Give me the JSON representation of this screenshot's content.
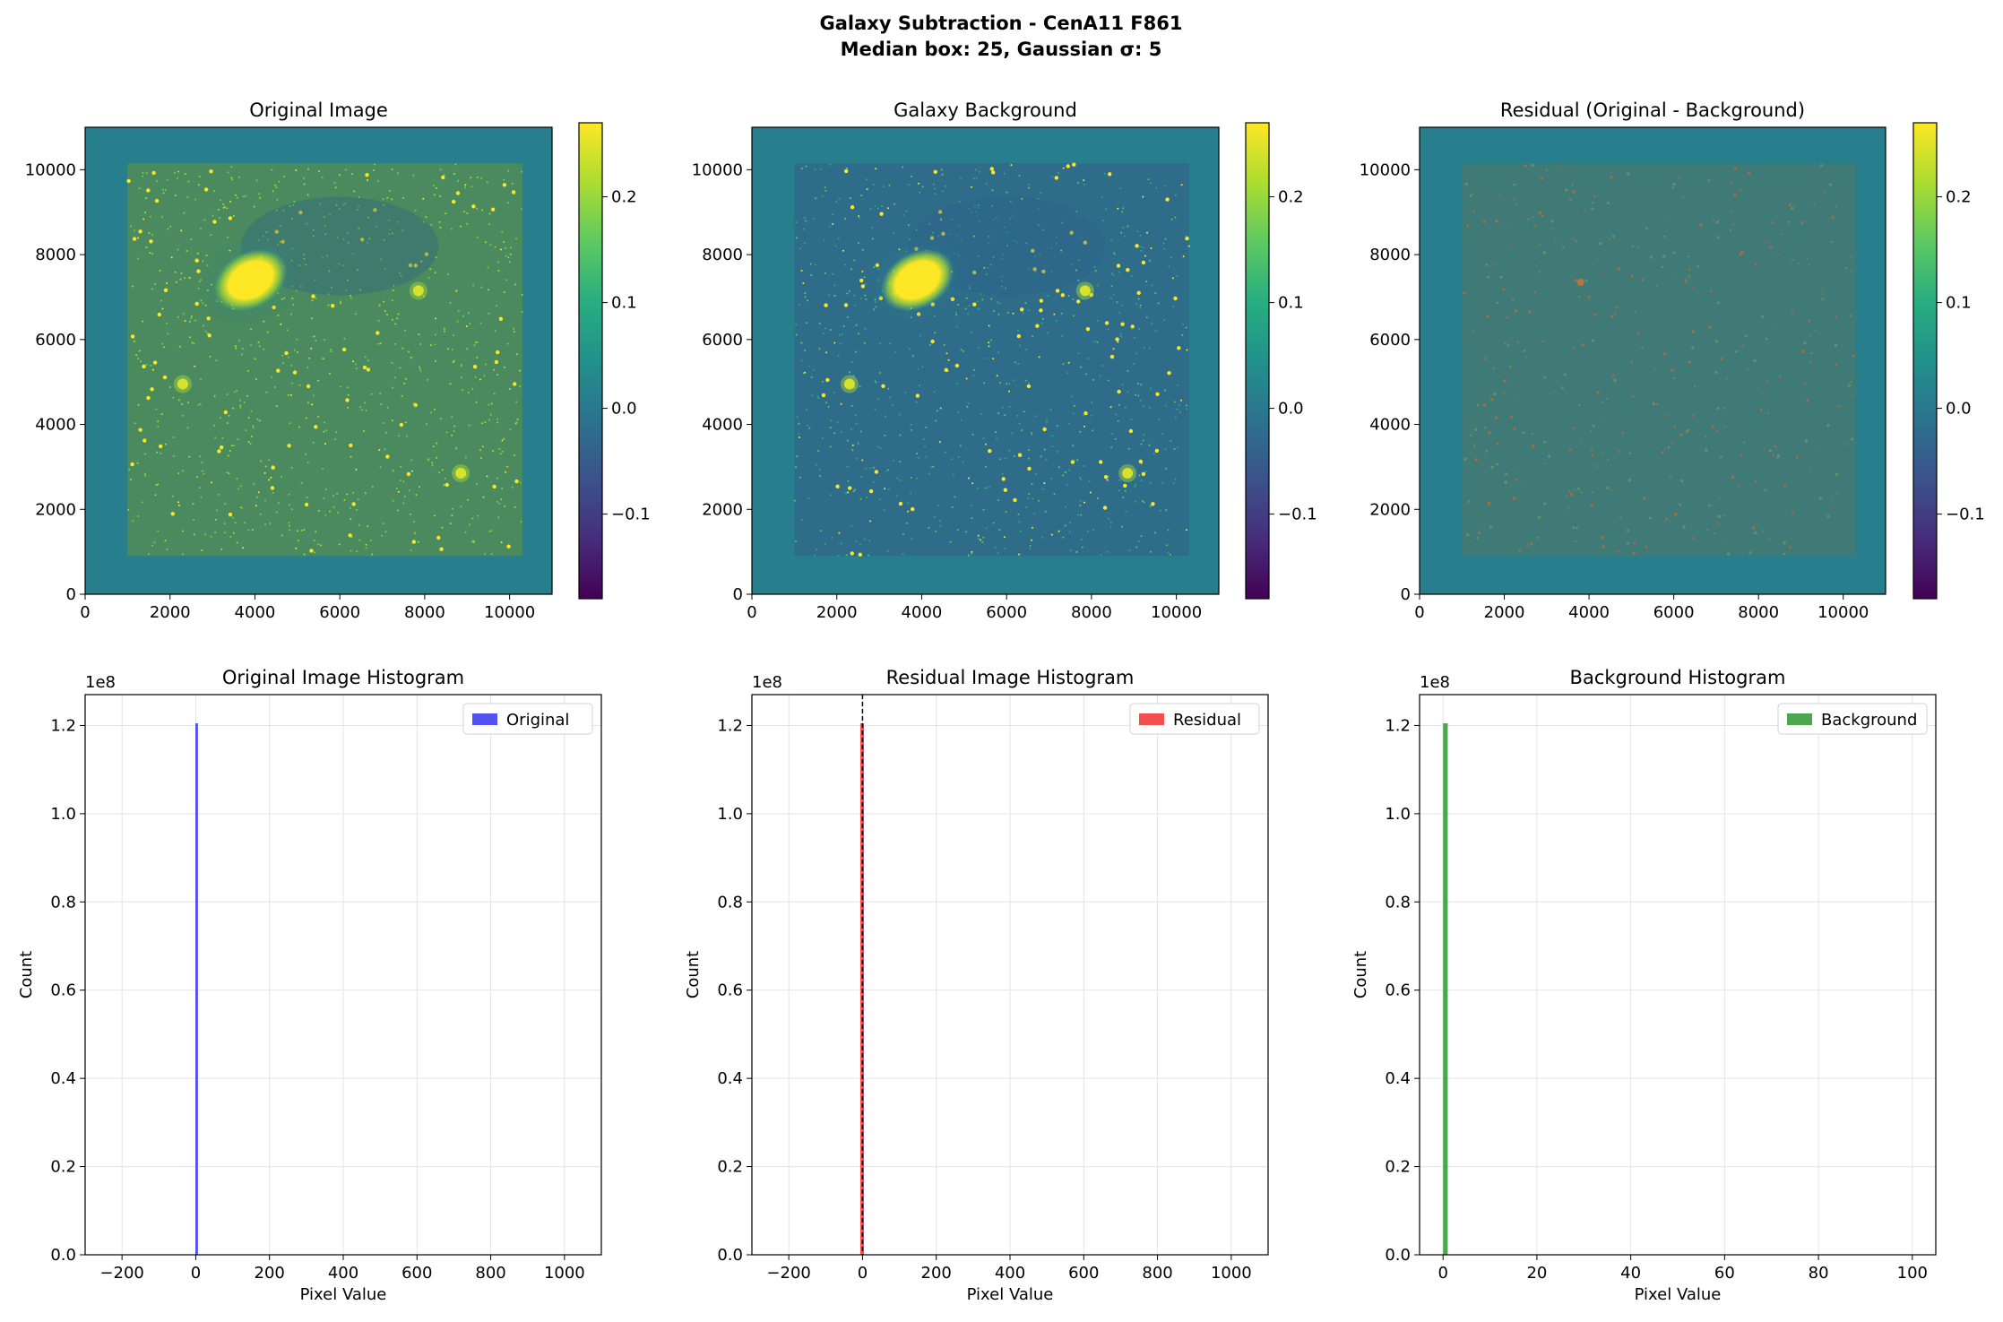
{
  "figure": {
    "title_line1": "Galaxy Subtraction - CenA11 F861",
    "title_line2": "Median box: 25, Gaussian σ: 5"
  },
  "colormap": "viridis",
  "chart_data": [
    {
      "type": "heatmap",
      "title": "Original Image",
      "xlim": [
        0,
        11000
      ],
      "ylim": [
        0,
        11000
      ],
      "xticks": [
        0,
        2000,
        4000,
        6000,
        8000,
        10000
      ],
      "yticks": [
        0,
        2000,
        4000,
        6000,
        8000,
        10000
      ],
      "data_region": [
        1000,
        10300,
        900,
        10150
      ],
      "colorbar": {
        "range": [
          -0.18,
          0.27
        ],
        "ticks": [
          -0.1,
          0.0,
          0.1,
          0.2
        ],
        "tick_labels": [
          "−0.1",
          "0.0",
          "0.1",
          "0.2"
        ]
      },
      "bright_sources": [
        {
          "x": 3900,
          "y": 7400,
          "rx": 800,
          "ry": 550,
          "rotation": -30
        },
        {
          "x": 8850,
          "y": 2850
        },
        {
          "x": 2300,
          "y": 4950
        },
        {
          "x": 7850,
          "y": 7150
        }
      ]
    },
    {
      "type": "heatmap",
      "title": "Galaxy Background",
      "xlim": [
        0,
        11000
      ],
      "ylim": [
        0,
        11000
      ],
      "xticks": [
        0,
        2000,
        4000,
        6000,
        8000,
        10000
      ],
      "yticks": [
        0,
        2000,
        4000,
        6000,
        8000,
        10000
      ],
      "data_region": [
        1000,
        10300,
        900,
        10150
      ],
      "colorbar": {
        "range": [
          -0.18,
          0.27
        ],
        "ticks": [
          -0.1,
          0.0,
          0.1,
          0.2
        ],
        "tick_labels": [
          "−0.1",
          "0.0",
          "0.1",
          "0.2"
        ]
      },
      "bright_sources": [
        {
          "x": 3900,
          "y": 7400,
          "rx": 800,
          "ry": 550,
          "rotation": -30
        },
        {
          "x": 8850,
          "y": 2850
        },
        {
          "x": 2300,
          "y": 4950
        },
        {
          "x": 7850,
          "y": 7150
        }
      ]
    },
    {
      "type": "heatmap",
      "title": "Residual (Original - Background)",
      "xlim": [
        0,
        11000
      ],
      "ylim": [
        0,
        11000
      ],
      "xticks": [
        0,
        2000,
        4000,
        6000,
        8000,
        10000
      ],
      "yticks": [
        0,
        2000,
        4000,
        6000,
        8000,
        10000
      ],
      "data_region": [
        1000,
        10300,
        900,
        10150
      ],
      "colorbar": {
        "range": [
          -0.18,
          0.27
        ],
        "ticks": [
          -0.1,
          0.0,
          0.1,
          0.2
        ],
        "tick_labels": [
          "−0.1",
          "0.0",
          "0.1",
          "0.2"
        ]
      },
      "bright_sources": [
        {
          "x": 3800,
          "y": 7350
        }
      ]
    },
    {
      "type": "bar",
      "title": "Original Image Histogram",
      "xlabel": "Pixel Value",
      "ylabel": "Count",
      "xlim": [
        -300,
        1100
      ],
      "ylim": [
        0,
        1.27
      ],
      "y_offset_label": "1e8",
      "xticks": [
        -200,
        0,
        200,
        400,
        600,
        800,
        1000
      ],
      "xtick_labels": [
        "−200",
        "0",
        "200",
        "400",
        "600",
        "800",
        "1000"
      ],
      "yticks": [
        0.0,
        0.2,
        0.4,
        0.6,
        0.8,
        1.0,
        1.2
      ],
      "ytick_labels": [
        "0.0",
        "0.2",
        "0.4",
        "0.6",
        "0.8",
        "1.0",
        "1.2"
      ],
      "bars": [
        {
          "x0": -1,
          "x1": 6,
          "count": 1.205
        }
      ],
      "series": [
        {
          "name": "Original",
          "color": "#5252f2"
        }
      ],
      "legend": "top-right",
      "grid": true
    },
    {
      "type": "bar",
      "title": "Residual Image Histogram",
      "xlabel": "Pixel Value",
      "ylabel": "Count",
      "xlim": [
        -300,
        1100
      ],
      "ylim": [
        0,
        1.27
      ],
      "y_offset_label": "1e8",
      "xticks": [
        -200,
        0,
        200,
        400,
        600,
        800,
        1000
      ],
      "xtick_labels": [
        "−200",
        "0",
        "200",
        "400",
        "600",
        "800",
        "1000"
      ],
      "yticks": [
        0.0,
        0.2,
        0.4,
        0.6,
        0.8,
        1.0,
        1.2
      ],
      "ytick_labels": [
        "0.0",
        "0.2",
        "0.4",
        "0.6",
        "0.8",
        "1.0",
        "1.2"
      ],
      "bars": [
        {
          "x0": -6,
          "x1": 4,
          "count": 1.205
        }
      ],
      "vline": 0,
      "series": [
        {
          "name": "Residual",
          "color": "#f24f4f"
        }
      ],
      "legend": "top-right",
      "grid": true
    },
    {
      "type": "bar",
      "title": "Background Histogram",
      "xlabel": "Pixel Value",
      "ylabel": "Count",
      "xlim": [
        -5,
        105
      ],
      "ylim": [
        0,
        1.27
      ],
      "y_offset_label": "1e8",
      "xticks": [
        0,
        20,
        40,
        60,
        80,
        100
      ],
      "xtick_labels": [
        "0",
        "20",
        "40",
        "60",
        "80",
        "100"
      ],
      "yticks": [
        0.0,
        0.2,
        0.4,
        0.6,
        0.8,
        1.0,
        1.2
      ],
      "ytick_labels": [
        "0.0",
        "0.2",
        "0.4",
        "0.6",
        "0.8",
        "1.0",
        "1.2"
      ],
      "bars": [
        {
          "x0": 0,
          "x1": 1,
          "count": 1.205
        }
      ],
      "series": [
        {
          "name": "Background",
          "color": "#4ea64e"
        }
      ],
      "legend": "top-right",
      "grid": true
    }
  ]
}
